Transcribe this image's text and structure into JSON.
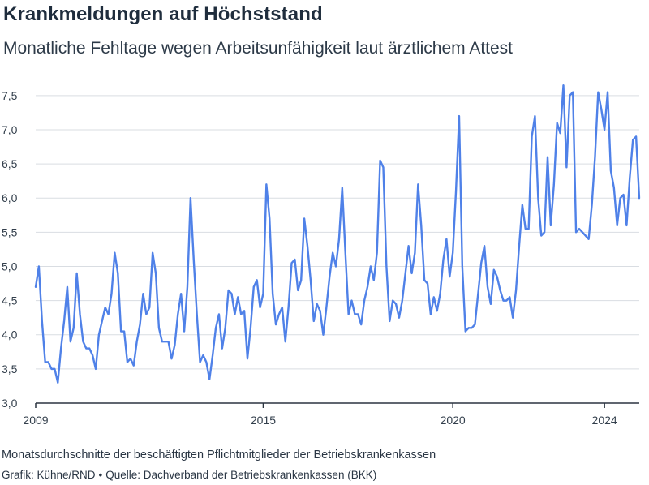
{
  "title": "Krankmeldungen auf Höchststand",
  "subtitle": "Monatliche Fehltage wegen Arbeitsunfähigkeit laut ärztlichem Attest",
  "note": "Monatsdurchschnitte der beschäftigten Pflichtmitglieder der Betriebskrankenkassen",
  "credit": {
    "graphic": "Grafik: Kühne/RND",
    "separator": "•",
    "source": "Quelle: Dachverband der Betriebskrankenkassen (BKK)"
  },
  "colors": {
    "line": "#4f81e8",
    "grid": "#d9dde2",
    "axis": "#2b3440"
  },
  "chart_data": {
    "type": "line",
    "title": "Krankmeldungen auf Höchststand",
    "subtitle": "Monatliche Fehltage wegen Arbeitsunfähigkeit laut ärztlichem Attest",
    "xlabel": "",
    "ylabel": "",
    "xlim": [
      2009.0,
      2024.917
    ],
    "ylim": [
      3.0,
      7.7
    ],
    "x_ticks": [
      2009,
      2015,
      2020,
      2024
    ],
    "x_tick_labels": [
      "2009",
      "2015",
      "2020",
      "2024"
    ],
    "y_ticks": [
      3.0,
      3.5,
      4.0,
      4.5,
      5.0,
      5.5,
      6.0,
      6.5,
      7.0,
      7.5
    ],
    "y_tick_labels": [
      "3,0",
      "3,5",
      "4,0",
      "4,5",
      "5,0",
      "5,5",
      "6,0",
      "6,5",
      "7,0",
      "7,5"
    ],
    "grid": "horizontal",
    "legend": "none",
    "series": [
      {
        "frequency": "monthly",
        "start": "2009-01",
        "end": "2024-12",
        "values": [
          4.7,
          5.0,
          4.2,
          3.6,
          3.6,
          3.5,
          3.5,
          3.3,
          3.8,
          4.2,
          4.7,
          3.9,
          4.1,
          4.9,
          4.3,
          3.9,
          3.8,
          3.8,
          3.7,
          3.5,
          4.0,
          4.2,
          4.4,
          4.3,
          4.6,
          5.2,
          4.9,
          4.05,
          4.05,
          3.6,
          3.65,
          3.55,
          3.9,
          4.15,
          4.6,
          4.3,
          4.4,
          5.2,
          4.9,
          4.1,
          3.9,
          3.9,
          3.9,
          3.65,
          3.85,
          4.3,
          4.6,
          4.05,
          4.7,
          6.0,
          5.1,
          4.3,
          3.6,
          3.7,
          3.6,
          3.35,
          3.7,
          4.1,
          4.3,
          3.8,
          4.1,
          4.65,
          4.6,
          4.3,
          4.55,
          4.3,
          4.35,
          3.65,
          4.1,
          4.7,
          4.8,
          4.4,
          4.6,
          6.2,
          5.7,
          4.6,
          4.15,
          4.3,
          4.4,
          3.9,
          4.4,
          5.05,
          5.1,
          4.65,
          4.8,
          5.7,
          5.3,
          4.8,
          4.2,
          4.45,
          4.35,
          4.0,
          4.4,
          4.85,
          5.2,
          5.0,
          5.4,
          6.15,
          5.2,
          4.3,
          4.5,
          4.3,
          4.3,
          4.15,
          4.5,
          4.7,
          5.0,
          4.8,
          5.2,
          6.55,
          6.45,
          5.0,
          4.2,
          4.5,
          4.45,
          4.25,
          4.5,
          4.9,
          5.3,
          4.9,
          5.2,
          6.2,
          5.6,
          4.8,
          4.75,
          4.3,
          4.55,
          4.35,
          4.6,
          5.1,
          5.4,
          4.85,
          5.2,
          6.1,
          7.2,
          5.0,
          4.05,
          4.1,
          4.1,
          4.15,
          4.6,
          5.05,
          5.3,
          4.7,
          4.45,
          4.95,
          4.85,
          4.65,
          4.5,
          4.5,
          4.55,
          4.25,
          4.65,
          5.3,
          5.9,
          5.55,
          5.55,
          6.9,
          7.2,
          6.0,
          5.45,
          5.5,
          6.6,
          5.6,
          6.2,
          7.1,
          6.95,
          7.65,
          6.45,
          7.5,
          7.55,
          5.5,
          5.55,
          5.5,
          5.45,
          5.4,
          5.9,
          6.6,
          7.55,
          7.3,
          7.0,
          7.55,
          6.4,
          6.15,
          5.6,
          6.0,
          6.05,
          5.6,
          6.3,
          6.85,
          6.9,
          6.0
        ]
      }
    ]
  }
}
